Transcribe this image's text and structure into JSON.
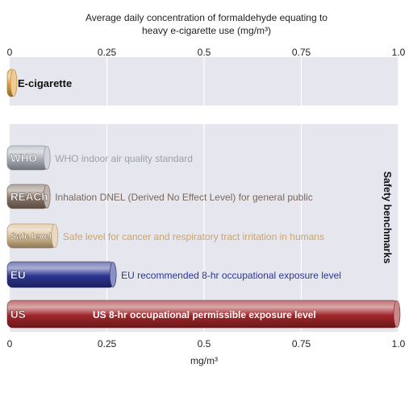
{
  "chart_data": {
    "type": "bar",
    "title_line1": "Average daily concentration of formaldehyde equating to",
    "title_line2": "heavy e-cigarette use (mg/m³)",
    "xlabel": "mg/m³",
    "xlim": [
      0,
      1.0
    ],
    "ticks": [
      "0",
      "0.25",
      "0.5",
      "0.75",
      "1.0"
    ],
    "tick_values": [
      0,
      0.25,
      0.5,
      0.75,
      1.0
    ],
    "grid": true,
    "panels": [
      {
        "id": "ecig",
        "bars": [
          {
            "name": "E-cigarette",
            "label": "E-cigarette",
            "value": 0.005,
            "description": "",
            "color": "#e0a03a",
            "label_color": "#111111"
          }
        ]
      },
      {
        "id": "benchmarks",
        "side_label": "Safety benchmarks",
        "bars": [
          {
            "name": "WHO",
            "label": "WHO",
            "value": 0.1,
            "description": "WHO indoor air quality standard",
            "color": "#a9afba",
            "label_color": "#9aa0ab"
          },
          {
            "name": "REACh",
            "label": "REACh",
            "value": 0.1,
            "description": "Inhalation DNEL (Derived No Effect Level) for general public",
            "color": "#8a7467",
            "label_color": "#7a665a"
          },
          {
            "name": "Safe level",
            "label": "Safe level",
            "value": 0.12,
            "description": "Safe level for cancer and respiratory tract irritation in humans",
            "color": "#d8b98c",
            "label_color": "#c9a46e"
          },
          {
            "name": "EU",
            "label": "EU",
            "value": 0.27,
            "description": "EU recommended 8-hr occupational exposure level",
            "color": "#2c3590",
            "label_color": "#2c3590"
          },
          {
            "name": "US",
            "label": "US",
            "value": 1.0,
            "description": "US 8-hr occupational permissible exposure level",
            "color": "#a0262a",
            "label_color": "#ffffff"
          }
        ]
      }
    ]
  }
}
